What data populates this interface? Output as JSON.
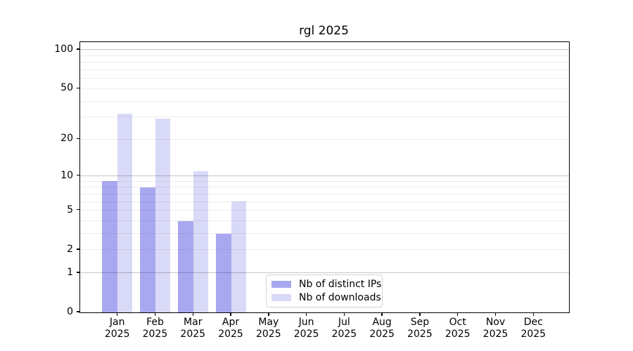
{
  "chart_data": {
    "type": "bar",
    "title": "rgl 2025",
    "categories": [
      "Jan",
      "Feb",
      "Mar",
      "Apr",
      "May",
      "Jun",
      "Jul",
      "Aug",
      "Sep",
      "Oct",
      "Nov",
      "Dec"
    ],
    "category_year": "2025",
    "series": [
      {
        "name": "Nb of distinct IPs",
        "color": "#a8a8f0",
        "values": [
          9,
          8,
          4,
          3,
          0,
          0,
          0,
          0,
          0,
          0,
          0,
          0
        ]
      },
      {
        "name": "Nb of downloads",
        "color": "#d9d9f8",
        "values": [
          32,
          29,
          11,
          6,
          0,
          0,
          0,
          0,
          0,
          0,
          0,
          0
        ]
      }
    ],
    "yscale": "log1p",
    "ylim": [
      0,
      117
    ],
    "yticks": [
      0,
      1,
      2,
      5,
      10,
      20,
      50,
      100
    ],
    "major_gridlines": [
      1,
      10,
      100
    ],
    "minor_gridlines": [
      2,
      3,
      4,
      5,
      6,
      7,
      8,
      9,
      20,
      30,
      40,
      50,
      60,
      70,
      80,
      90
    ],
    "grid": true,
    "legend_position": "bottom-center"
  }
}
